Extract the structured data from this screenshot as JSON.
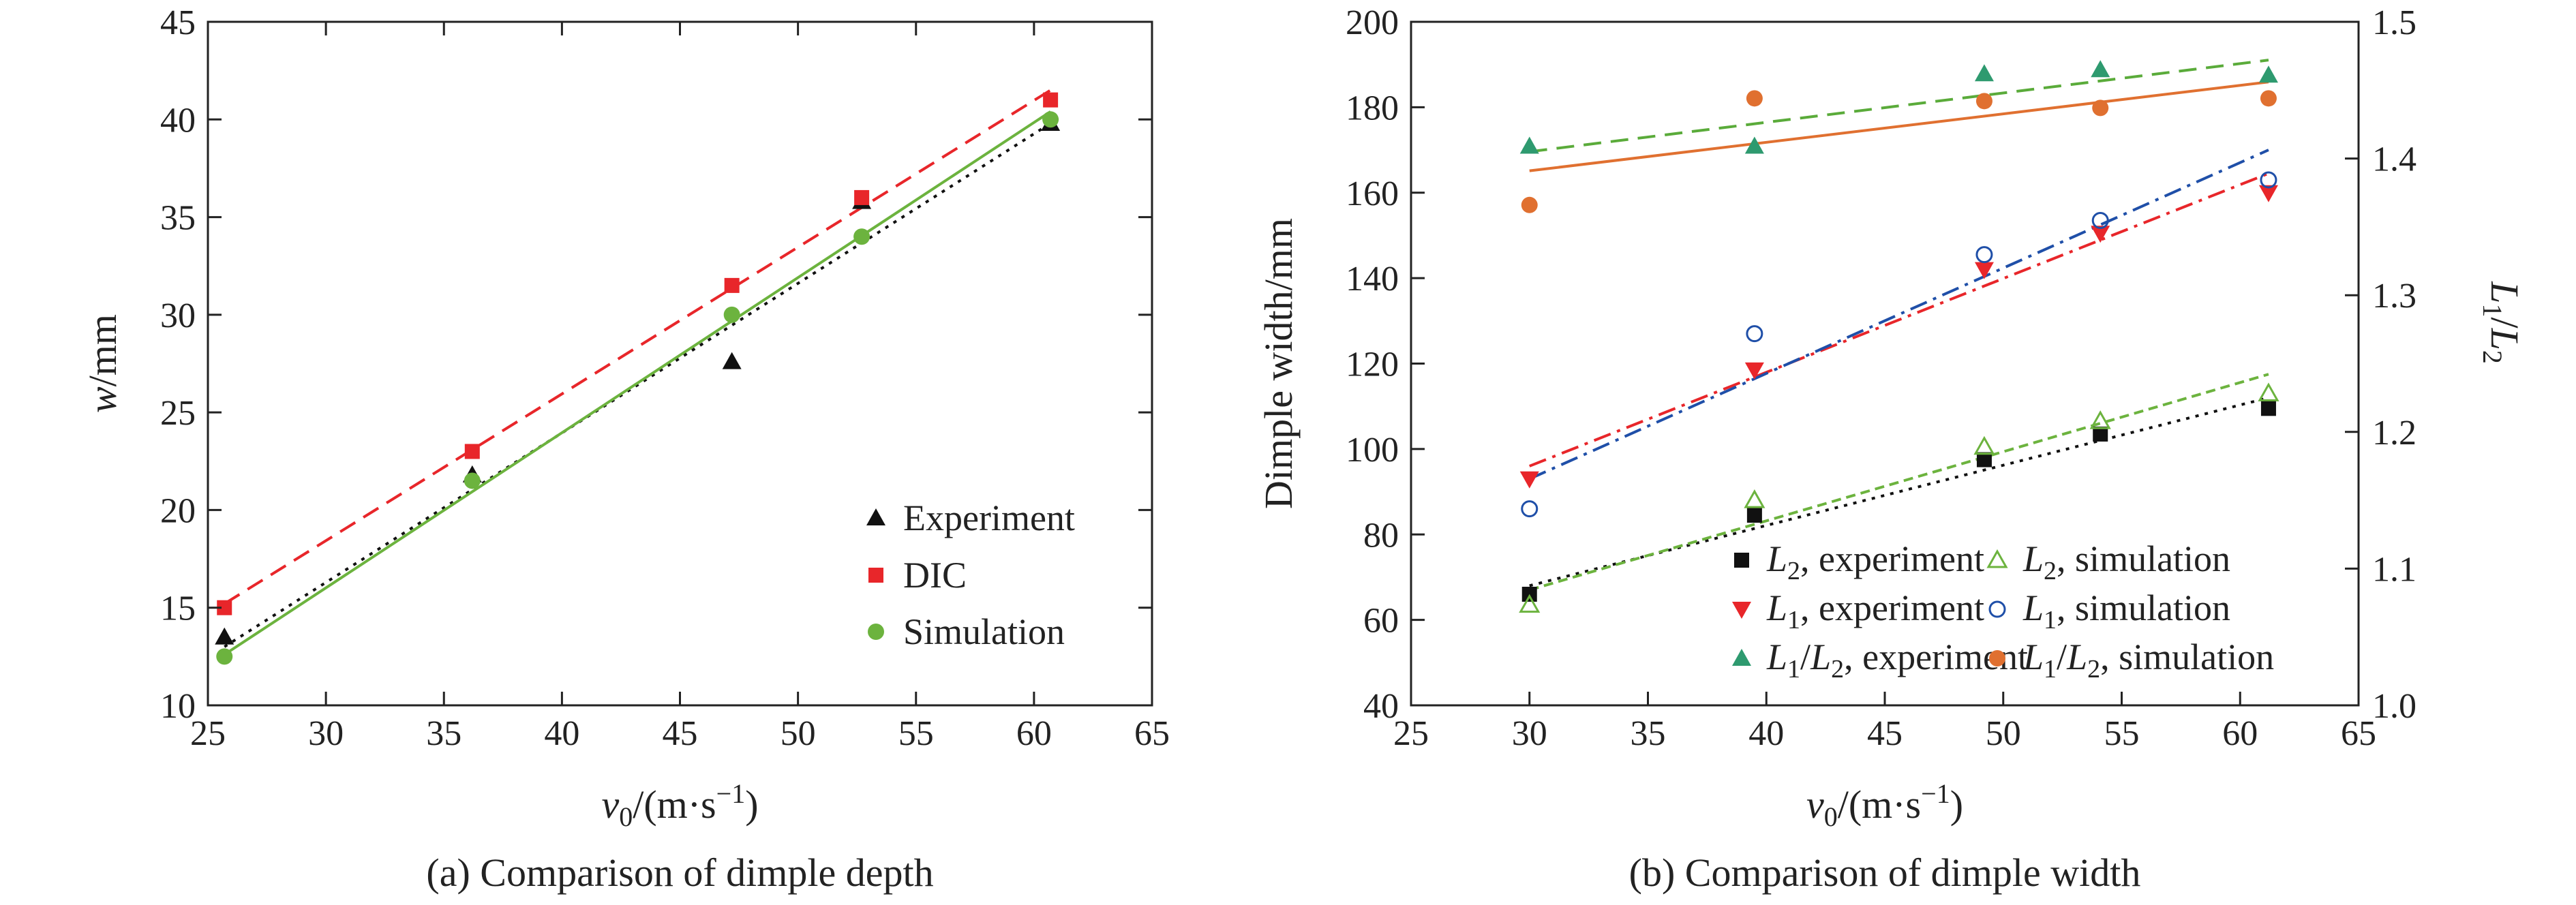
{
  "chart_data": [
    {
      "type": "scatter",
      "caption": "(a) Comparison of dimple depth",
      "xlabel": {
        "main": "v",
        "sub": "0",
        "unit": "/(m·s",
        "sup": "−1",
        "close": ")"
      },
      "ylabel": {
        "italic": "w",
        "rest": "/mm"
      },
      "xlim": [
        25,
        65
      ],
      "ylim": [
        10,
        45
      ],
      "xticks": [
        "25",
        "30",
        "35",
        "40",
        "45",
        "50",
        "55",
        "60",
        "65"
      ],
      "yticks": [
        "10",
        "15",
        "20",
        "25",
        "30",
        "35",
        "40",
        "45"
      ],
      "legend_position": "bottom-right",
      "series": [
        {
          "name": "Experiment",
          "marker": "triangle",
          "color": "#111111",
          "x": [
            25.7,
            36.2,
            47.2,
            52.7,
            60.7
          ],
          "y": [
            13.5,
            21.8,
            27.6,
            35.8,
            39.8
          ],
          "fit": {
            "x": [
              25.7,
              60.7
            ],
            "y": [
              13.0,
              39.8
            ],
            "dash": "dotted"
          }
        },
        {
          "name": "DIC",
          "marker": "square",
          "color": "#e8262a",
          "x": [
            25.7,
            36.2,
            47.2,
            52.7,
            60.7
          ],
          "y": [
            15.0,
            23.0,
            31.5,
            36.0,
            41.0
          ],
          "fit": {
            "x": [
              25.7,
              60.7
            ],
            "y": [
              15.2,
              41.5
            ],
            "dash": "dashed"
          }
        },
        {
          "name": "Simulation",
          "marker": "circle",
          "color": "#6cb33e",
          "x": [
            25.7,
            36.2,
            47.2,
            52.7,
            60.7
          ],
          "y": [
            12.5,
            21.5,
            30.0,
            34.0,
            40.0
          ],
          "fit": {
            "x": [
              25.7,
              60.7
            ],
            "y": [
              12.6,
              40.4
            ],
            "dash": "solid"
          }
        }
      ]
    },
    {
      "type": "scatter",
      "caption": "(b) Comparison of dimple width",
      "xlabel": {
        "main": "v",
        "sub": "0",
        "unit": "/(m·s",
        "sup": "−1",
        "close": ")"
      },
      "ylabel": "Dimple width/mm",
      "y2label": {
        "a": "L",
        "asub": "1",
        "slash": "/",
        "b": "L",
        "bsub": "2"
      },
      "xlim": [
        25,
        65
      ],
      "ylim": [
        40,
        200
      ],
      "y2lim": [
        1.0,
        1.5
      ],
      "xticks": [
        "25",
        "30",
        "35",
        "40",
        "45",
        "50",
        "55",
        "60",
        "65"
      ],
      "yticks": [
        "40",
        "60",
        "80",
        "100",
        "120",
        "140",
        "160",
        "180",
        "200"
      ],
      "y2ticks": [
        "1.0",
        "1.1",
        "1.2",
        "1.3",
        "1.4",
        "1.5"
      ],
      "legend_position": "bottom-right",
      "series": [
        {
          "name": "L2, experiment",
          "label": {
            "sym": "L",
            "sub": "2",
            "text": ", experiment"
          },
          "marker": "square",
          "color": "#111111",
          "axis": "left",
          "x": [
            30.0,
            39.5,
            49.2,
            54.1,
            61.2
          ],
          "y": [
            66,
            84.5,
            97.5,
            103.5,
            109.5
          ],
          "fit": {
            "x": [
              30,
              61.2
            ],
            "y": [
              68,
              112
            ],
            "dash": "dotted"
          }
        },
        {
          "name": "L2, simulation",
          "label": {
            "sym": "L",
            "sub": "2",
            "text": ", simulation"
          },
          "marker": "triangle-open",
          "color": "#6cb33e",
          "axis": "left",
          "x": [
            30.0,
            39.5,
            49.2,
            54.1,
            61.2
          ],
          "y": [
            63.5,
            88,
            100.5,
            106.5,
            113
          ],
          "fit": {
            "x": [
              30,
              61.2
            ],
            "y": [
              67,
              117.5
            ],
            "dash": "dashed-short"
          }
        },
        {
          "name": "L1, experiment",
          "label": {
            "sym": "L",
            "sub": "1",
            "text": ", experiment"
          },
          "marker": "triangle-down",
          "color": "#e8262a",
          "axis": "left",
          "x": [
            30.0,
            39.5,
            49.2,
            54.1,
            61.2
          ],
          "y": [
            93,
            118.5,
            142,
            150.5,
            160
          ],
          "fit": {
            "x": [
              30,
              61.2
            ],
            "y": [
              96,
              164.5
            ],
            "dash": "dashdot"
          }
        },
        {
          "name": "L1, simulation",
          "label": {
            "sym": "L",
            "sub": "1",
            "text": ", simulation"
          },
          "marker": "circle-open",
          "color": "#1f4fa8",
          "axis": "left",
          "x": [
            30.0,
            39.5,
            49.2,
            54.1,
            61.2
          ],
          "y": [
            86,
            127,
            145.5,
            153.5,
            163
          ],
          "fit": {
            "x": [
              30,
              61.2
            ],
            "y": [
              93,
              170
            ],
            "dash": "dashdot"
          }
        },
        {
          "name": "L1/L2, experiment",
          "label": {
            "sym": "L",
            "sub": "1",
            "mid": "/",
            "sym2": "L",
            "sub2": "2",
            "text": ", experiment"
          },
          "marker": "triangle",
          "color": "#2e9a6f",
          "axis": "right",
          "x": [
            30.0,
            39.5,
            49.2,
            54.1,
            61.2
          ],
          "y": [
            1.409,
            1.409,
            1.462,
            1.465,
            1.461
          ],
          "fit": {
            "x": [
              30,
              61.2
            ],
            "y": [
              1.405,
              1.472
            ],
            "dash": "dashed",
            "color": "#5aab3a"
          }
        },
        {
          "name": "L1/L2, simulation",
          "label": {
            "sym": "L",
            "sub": "1",
            "mid": "/",
            "sym2": "L",
            "sub2": "2",
            "text": ", simulation"
          },
          "marker": "circle",
          "color": "#e07030",
          "axis": "right",
          "x": [
            30.0,
            39.5,
            49.2,
            54.1,
            61.2
          ],
          "y": [
            1.366,
            1.444,
            1.442,
            1.437,
            1.444
          ],
          "fit": {
            "x": [
              30,
              61.2
            ],
            "y": [
              1.391,
              1.456
            ],
            "dash": "solid"
          }
        }
      ]
    }
  ]
}
